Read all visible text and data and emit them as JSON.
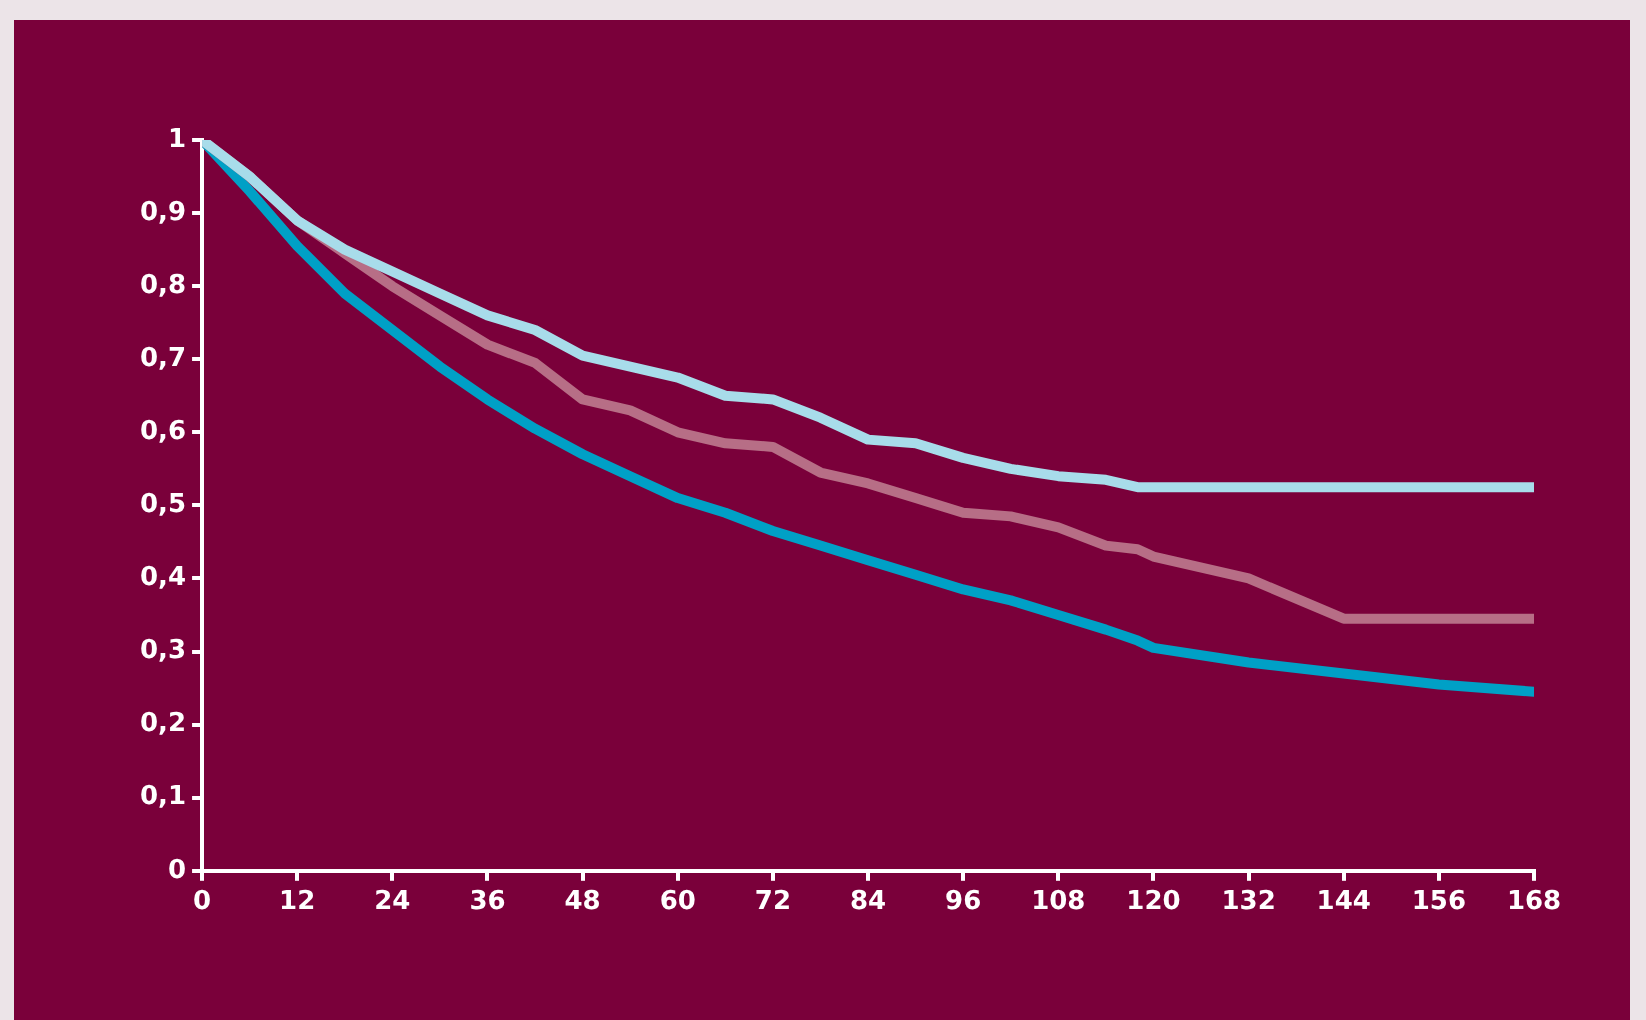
{
  "chart_data": {
    "type": "line",
    "x": [
      0,
      6,
      12,
      18,
      24,
      30,
      36,
      42,
      48,
      54,
      60,
      66,
      72,
      78,
      84,
      90,
      96,
      102,
      108,
      114,
      118,
      120,
      132,
      144,
      156,
      168
    ],
    "xlim": [
      0,
      168
    ],
    "xticks": [
      0,
      12,
      24,
      36,
      48,
      60,
      72,
      84,
      96,
      108,
      120,
      132,
      144,
      156,
      168
    ],
    "ylim": [
      0,
      1
    ],
    "yticks": [
      0,
      {
        "value": 0.1,
        "label": "0,1"
      },
      {
        "value": 0.2,
        "label": "0,2"
      },
      {
        "value": 0.3,
        "label": "0,3"
      },
      {
        "value": 0.4,
        "label": "0,4"
      },
      {
        "value": 0.5,
        "label": "0,5"
      },
      {
        "value": 0.6,
        "label": "0,6"
      },
      {
        "value": 0.7,
        "label": "0,7"
      },
      {
        "value": 0.8,
        "label": "0,8"
      },
      {
        "value": 0.9,
        "label": "0,9"
      },
      1
    ],
    "grid": false,
    "legend": false,
    "marker": "none",
    "line_style": "solid",
    "series": [
      {
        "color": "#a8dcea",
        "values": [
          1,
          0.95,
          0.89,
          0.85,
          0.82,
          0.79,
          0.76,
          0.74,
          0.705,
          0.69,
          0.675,
          0.65,
          0.645,
          0.62,
          0.59,
          0.585,
          0.565,
          0.55,
          0.54,
          0.535,
          0.525,
          0.525,
          0.525,
          0.525,
          0.525,
          0.525
        ]
      },
      {
        "color": "#b76e86",
        "values": [
          1,
          0.95,
          0.89,
          0.845,
          0.8,
          0.76,
          0.72,
          0.695,
          0.645,
          0.63,
          0.6,
          0.585,
          0.58,
          0.545,
          0.53,
          0.51,
          0.49,
          0.485,
          0.47,
          0.445,
          0.44,
          0.43,
          0.4,
          0.345,
          0.345,
          0.345
        ]
      },
      {
        "color": "#00a0c6",
        "values": [
          1,
          0.93,
          0.855,
          0.79,
          0.74,
          0.69,
          0.645,
          0.605,
          0.57,
          0.54,
          0.51,
          0.49,
          0.465,
          0.445,
          0.425,
          0.405,
          0.385,
          0.37,
          0.35,
          0.33,
          0.315,
          0.305,
          0.285,
          0.27,
          0.255,
          0.245
        ]
      }
    ]
  }
}
